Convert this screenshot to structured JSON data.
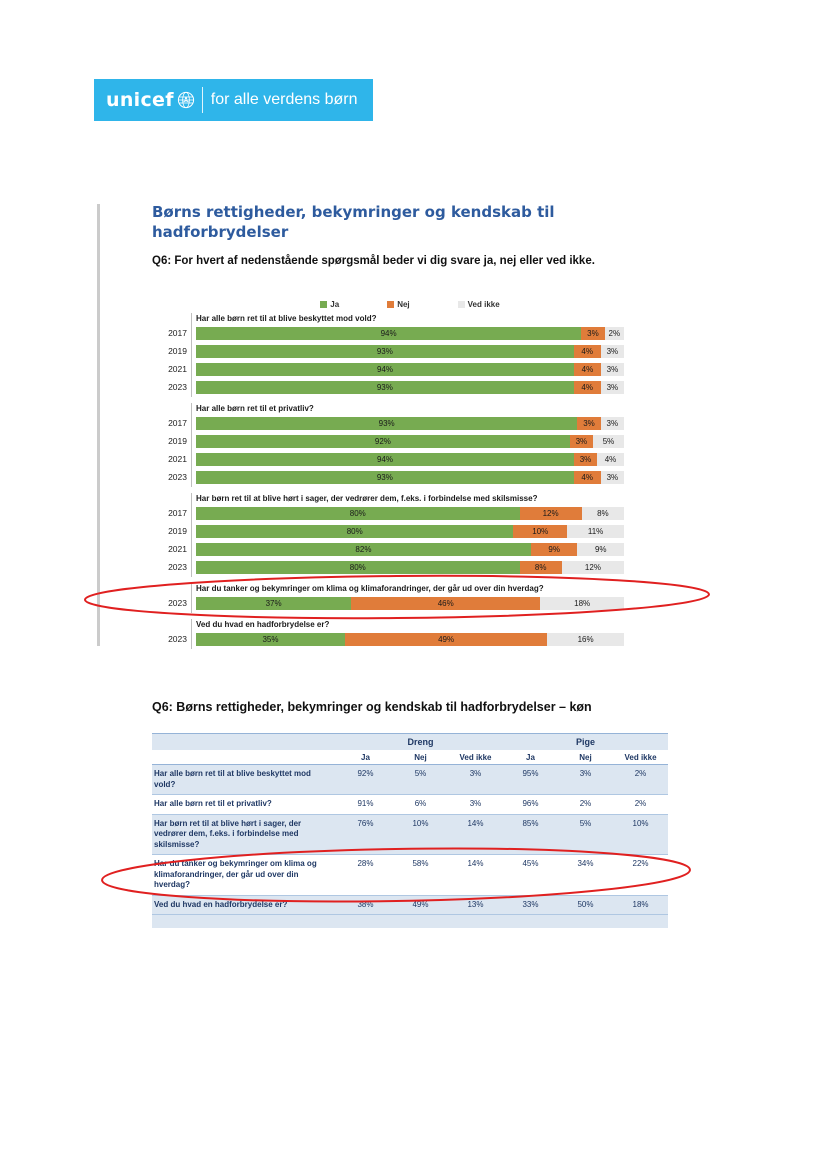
{
  "banner": {
    "brand": "unicef",
    "tagline": "for alle verdens børn",
    "bg_color": "#2FB5EA"
  },
  "page": {
    "heading": "Børns rettigheder, bekymringer og kendskab til hadforbrydelser",
    "subheading": "Q6: For hvert af nedenstående spørgsmål beder vi dig svare ja, nej eller ved ikke."
  },
  "chart_data": {
    "type": "bar",
    "stacked": true,
    "orientation": "horizontal",
    "unit": "%",
    "xlim": [
      0,
      100
    ],
    "legend": [
      {
        "label": "Ja",
        "color": "#77AB51"
      },
      {
        "label": "Nej",
        "color": "#E07C3A"
      },
      {
        "label": "Ved ikke",
        "color": "#E8E8E8"
      }
    ],
    "groups": [
      {
        "question": "Har alle børn ret til at blive beskyttet mod vold?",
        "rows": [
          {
            "year": "2017",
            "values": [
              94,
              3,
              2
            ],
            "labels": [
              "94%",
              "3%",
              "2%"
            ]
          },
          {
            "year": "2019",
            "values": [
              93,
              4,
              3
            ],
            "labels": [
              "93%",
              "4%",
              "3%"
            ]
          },
          {
            "year": "2021",
            "values": [
              94,
              4,
              3
            ],
            "labels": [
              "94%",
              "4%",
              "3%"
            ]
          },
          {
            "year": "2023",
            "values": [
              93,
              4,
              3
            ],
            "labels": [
              "93%",
              "4%",
              "3%"
            ]
          }
        ]
      },
      {
        "question": "Har alle børn ret til et privatliv?",
        "rows": [
          {
            "year": "2017",
            "values": [
              93,
              3,
              3
            ],
            "labels": [
              "93%",
              "3%",
              "3%"
            ]
          },
          {
            "year": "2019",
            "values": [
              92,
              3,
              5
            ],
            "labels": [
              "92%",
              "3%",
              "5%"
            ]
          },
          {
            "year": "2021",
            "values": [
              94,
              3,
              4
            ],
            "labels": [
              "94%",
              "3%",
              "4%"
            ]
          },
          {
            "year": "2023",
            "values": [
              93,
              4,
              3
            ],
            "labels": [
              "93%",
              "4%",
              "3%"
            ]
          }
        ]
      },
      {
        "question": "Har børn ret til at blive hørt i sager, der vedrører dem, f.eks. i forbindelse med skilsmisse?",
        "rows": [
          {
            "year": "2017",
            "values": [
              80,
              12,
              8
            ],
            "labels": [
              "80%",
              "12%",
              "8%"
            ]
          },
          {
            "year": "2019",
            "values": [
              80,
              10,
              11
            ],
            "labels": [
              "80%",
              "10%",
              "11%"
            ]
          },
          {
            "year": "2021",
            "values": [
              82,
              9,
              9
            ],
            "labels": [
              "82%",
              "9%",
              "9%"
            ]
          },
          {
            "year": "2023",
            "values": [
              80,
              8,
              12
            ],
            "labels": [
              "80%",
              "8%",
              "12%"
            ]
          }
        ]
      },
      {
        "question": "Har du tanker og bekymringer om klima og klimaforandringer, der går ud over din hverdag?",
        "circled": true,
        "rows": [
          {
            "year": "2023",
            "values": [
              37,
              46,
              18
            ],
            "labels": [
              "37%",
              "46%",
              "18%"
            ]
          }
        ]
      },
      {
        "question": "Ved du hvad en hadforbrydelse er?",
        "rows": [
          {
            "year": "2023",
            "values": [
              35,
              49,
              16
            ],
            "labels": [
              "35%",
              "49%",
              "16%"
            ]
          }
        ]
      }
    ]
  },
  "table": {
    "title": "Q6: Børns rettigheder, bekymringer og kendskab til hadforbrydelser – køn",
    "group_headers": [
      "Dreng",
      "Pige"
    ],
    "col_headers": [
      "Ja",
      "Nej",
      "Ved ikke",
      "Ja",
      "Nej",
      "Ved ikke"
    ],
    "rows": [
      {
        "question": "Har alle børn ret til at blive beskyttet mod vold?",
        "values": [
          "92%",
          "5%",
          "3%",
          "95%",
          "3%",
          "2%"
        ],
        "shaded": true,
        "circled": false
      },
      {
        "question": "Har alle børn ret til et privatliv?",
        "values": [
          "91%",
          "6%",
          "3%",
          "96%",
          "2%",
          "2%"
        ],
        "shaded": false,
        "circled": false
      },
      {
        "question": "Har børn ret til at blive hørt i sager, der vedrører dem, f.eks. i forbindelse med skilsmisse?",
        "values": [
          "76%",
          "10%",
          "14%",
          "85%",
          "5%",
          "10%"
        ],
        "shaded": true,
        "circled": false
      },
      {
        "question": "Har du tanker og bekymringer om klima og klimaforandringer, der går ud over din hverdag?",
        "values": [
          "28%",
          "58%",
          "14%",
          "45%",
          "34%",
          "22%"
        ],
        "shaded": false,
        "circled": true
      },
      {
        "question": "Ved du hvad en hadforbrydelse er?",
        "values": [
          "38%",
          "49%",
          "13%",
          "33%",
          "50%",
          "18%"
        ],
        "shaded": true,
        "circled": false
      }
    ]
  },
  "annotations": {
    "color": "#E02020"
  }
}
